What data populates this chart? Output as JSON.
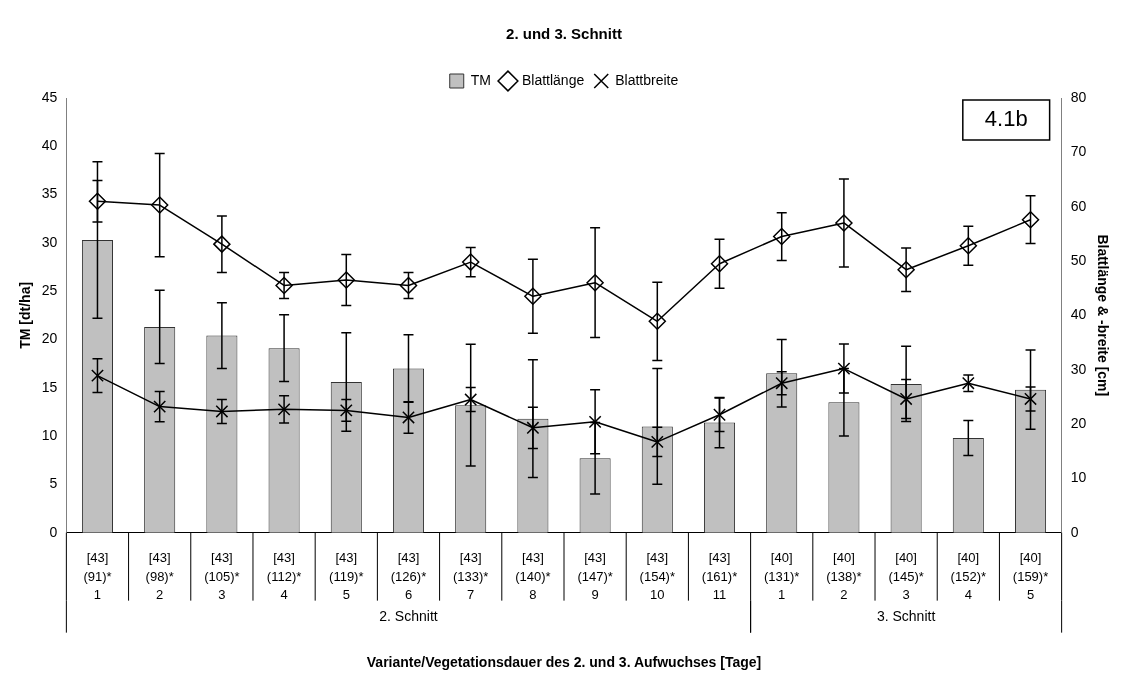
{
  "chart_data": {
    "type": "bar",
    "title": "2. und 3. Schnitt",
    "categories": [
      "[43]\n(91)*\n1",
      "[43]\n(98)*\n2",
      "[43]\n(105)*\n3",
      "[43]\n(112)*\n4",
      "[43]\n(119)*\n5",
      "[43]\n(126)*\n6",
      "[43]\n(133)*\n7",
      "[43]\n(140)*\n8",
      "[43]\n(147)*\n9",
      "[43]\n(154)*\n10",
      "[43]\n(161)*\n11",
      "[40]\n(131)*\n1",
      "[40]\n(138)*\n2",
      "[40]\n(145)*\n3",
      "[40]\n(152)*\n4",
      "[40]\n(159)*\n5"
    ],
    "series": [
      {
        "name": "TM",
        "color": "#c0c0c0",
        "values": [
          30.3,
          21.3,
          20.4,
          19.1,
          15.6,
          17.0,
          13.2,
          11.8,
          7.7,
          11.0,
          11.4,
          16.5,
          13.5,
          15.4,
          9.8,
          14.8
        ],
        "errors": [
          8.1,
          3.8,
          3.4,
          3.45,
          5.1,
          3.5,
          6.3,
          6.1,
          3.7,
          6.0,
          2.6,
          3.5,
          3.5,
          3.9,
          1.8,
          4.1
        ]
      },
      {
        "name": "Blattlänge",
        "type": "line",
        "axis": "y2",
        "marker": "diamond",
        "color": "#000000",
        "values": [
          61.0,
          60.3,
          53.1,
          45.5,
          46.5,
          45.5,
          49.8,
          43.5,
          46.0,
          38.9,
          49.5,
          54.5,
          57.0,
          48.4,
          52.8,
          57.6
        ],
        "errors": [
          3.8,
          9.5,
          5.2,
          2.4,
          4.7,
          2.4,
          2.7,
          6.8,
          10.1,
          7.2,
          4.5,
          4.4,
          8.1,
          4.0,
          3.6,
          4.4
        ]
      },
      {
        "name": "Blattbreite",
        "type": "line",
        "axis": "y2",
        "marker": "cross",
        "color": "#000000",
        "values": [
          28.9,
          23.2,
          22.3,
          22.7,
          22.5,
          21.2,
          24.5,
          19.3,
          20.4,
          16.7,
          21.7,
          27.5,
          30.2,
          24.6,
          27.5,
          24.6
        ],
        "errors": [
          3.1,
          2.8,
          2.2,
          2.5,
          2.0,
          2.9,
          2.2,
          3.8,
          5.9,
          2.7,
          3.1,
          2.1,
          4.5,
          3.6,
          1.5,
          2.2
        ]
      }
    ],
    "ylabel": "TM [dt/ha]",
    "y2label": "Blattlänge & -breite [cm]",
    "xlabel": "Variante/Vegetationsdauer des 2. und 3. Aufwuchses [Tage]",
    "ylim": [
      0,
      45
    ],
    "yticks": [
      0,
      5,
      10,
      15,
      20,
      25,
      30,
      35,
      40,
      45
    ],
    "y2lim": [
      0,
      80
    ],
    "y2ticks": [
      0,
      10,
      20,
      30,
      40,
      50,
      60,
      70,
      80
    ],
    "annotations": [
      "4.1b",
      "2. Schnitt",
      "3. Schnitt"
    ],
    "legend": "top",
    "grid": false
  }
}
